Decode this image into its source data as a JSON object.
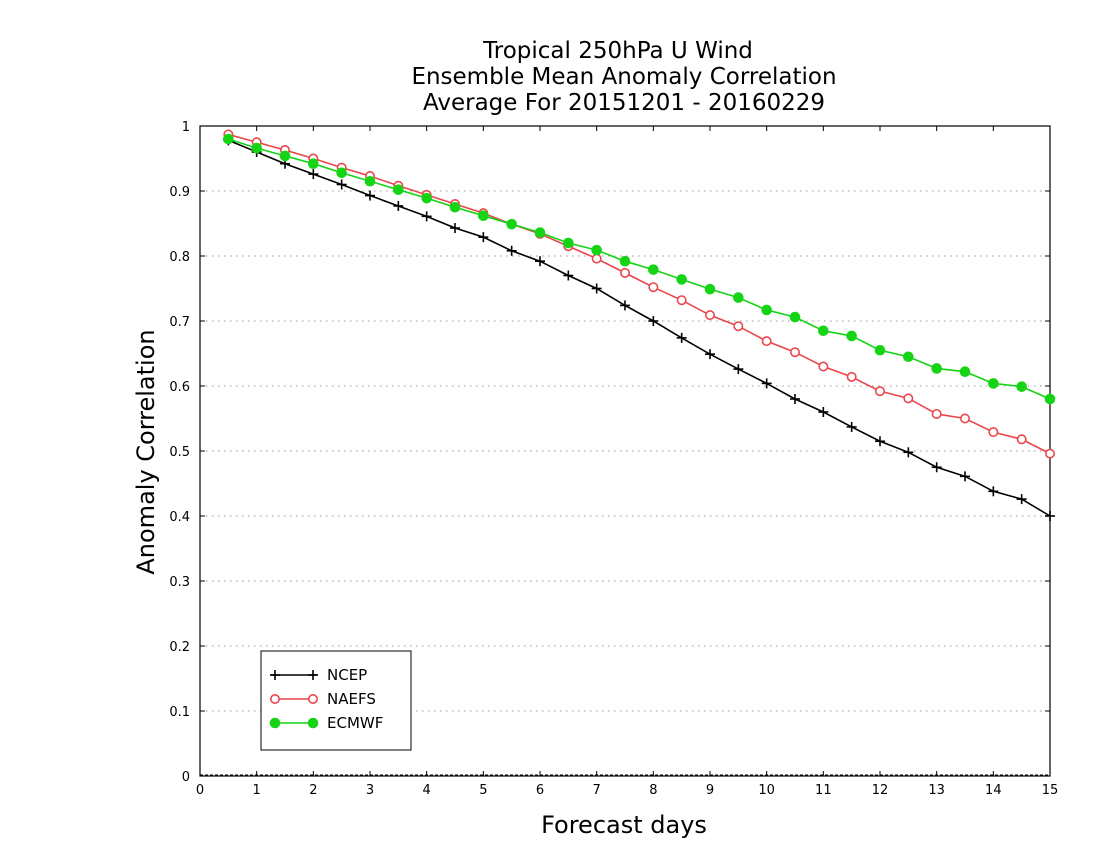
{
  "chart_data": {
    "type": "line",
    "title_lines": [
      "Tropical 250hPa U Wind",
      "Ensemble Mean Anomaly Correlation",
      "Average For 20151201 - 20160229"
    ],
    "xlabel": "Forecast days",
    "ylabel": "Anomaly Correlation",
    "xlim": [
      0,
      15
    ],
    "ylim": [
      0,
      1
    ],
    "x_ticks": [
      0,
      1,
      2,
      3,
      4,
      5,
      6,
      7,
      8,
      9,
      10,
      11,
      12,
      13,
      14,
      15
    ],
    "y_ticks": [
      0,
      0.1,
      0.2,
      0.3,
      0.4,
      0.5,
      0.6,
      0.7,
      0.8,
      0.9,
      1
    ],
    "y_tick_labels": [
      "0",
      "0.1",
      "0.2",
      "0.3",
      "0.4",
      "0.5",
      "0.6",
      "0.7",
      "0.8",
      "0.9",
      "1"
    ],
    "grid": "horizontal dotted",
    "legend_position": "bottom-left",
    "x": [
      0.5,
      1.0,
      1.5,
      2.0,
      2.5,
      3.0,
      3.5,
      4.0,
      4.5,
      5.0,
      5.5,
      6.0,
      6.5,
      7.0,
      7.5,
      8.0,
      8.5,
      9.0,
      9.5,
      10.0,
      10.5,
      11.0,
      11.5,
      12.0,
      12.5,
      13.0,
      13.5,
      14.0,
      14.5,
      15.0
    ],
    "series": [
      {
        "name": "NCEP",
        "color": "#000000",
        "marker": "plus",
        "values": [
          0.978,
          0.96,
          0.942,
          0.926,
          0.91,
          0.893,
          0.877,
          0.861,
          0.843,
          0.829,
          0.808,
          0.792,
          0.77,
          0.75,
          0.724,
          0.7,
          0.674,
          0.649,
          0.626,
          0.604,
          0.58,
          0.56,
          0.537,
          0.515,
          0.498,
          0.475,
          0.461,
          0.438,
          0.426,
          0.4
        ]
      },
      {
        "name": "NAEFS",
        "color": "#e8474c",
        "marker": "open-circle",
        "values": [
          0.987,
          0.975,
          0.963,
          0.95,
          0.936,
          0.923,
          0.908,
          0.894,
          0.88,
          0.866,
          0.849,
          0.834,
          0.815,
          0.796,
          0.774,
          0.752,
          0.732,
          0.709,
          0.692,
          0.669,
          0.652,
          0.63,
          0.614,
          0.592,
          0.581,
          0.557,
          0.55,
          0.529,
          0.518,
          0.496
        ]
      },
      {
        "name": "ECMWF",
        "color": "#15d415",
        "marker": "filled-circle",
        "values": [
          0.98,
          0.966,
          0.954,
          0.942,
          0.928,
          0.915,
          0.902,
          0.889,
          0.875,
          0.862,
          0.849,
          0.836,
          0.82,
          0.809,
          0.792,
          0.779,
          0.764,
          0.749,
          0.736,
          0.717,
          0.706,
          0.685,
          0.677,
          0.655,
          0.645,
          0.627,
          0.622,
          0.604,
          0.599,
          0.58
        ]
      }
    ]
  }
}
